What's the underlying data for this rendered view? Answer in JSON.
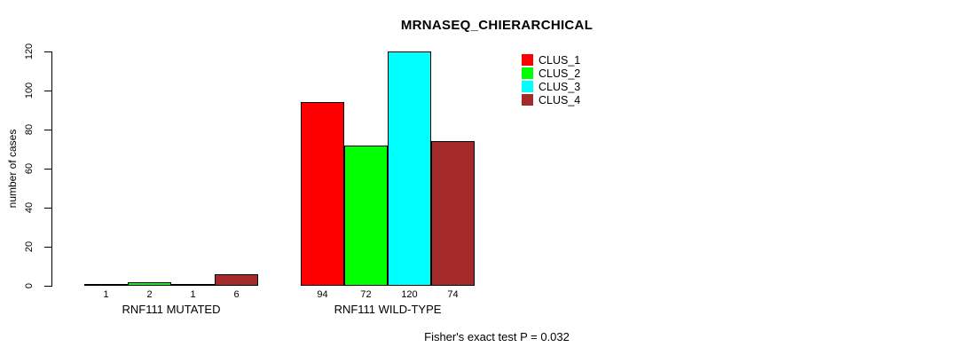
{
  "chart_data": {
    "type": "bar",
    "title": "MRNASEQ_CHIERARCHICAL",
    "ylabel": "number of cases",
    "xlabel": "",
    "ylim": [
      0,
      120
    ],
    "yticks": [
      0,
      20,
      40,
      60,
      80,
      100,
      120
    ],
    "grid": false,
    "legend_position": "top-right-inside",
    "legend_entries": [
      "CLUS_1",
      "CLUS_2",
      "CLUS_3",
      "CLUS_4"
    ],
    "categories": [
      "RNF111 MUTATED",
      "RNF111 WILD-TYPE"
    ],
    "series": [
      {
        "name": "CLUS_1",
        "color": "#FF0000",
        "values": [
          1,
          94
        ]
      },
      {
        "name": "CLUS_2",
        "color": "#00FF00",
        "values": [
          2,
          72
        ]
      },
      {
        "name": "CLUS_3",
        "color": "#00FFFF",
        "values": [
          1,
          120
        ]
      },
      {
        "name": "CLUS_4",
        "color": "#A52A2A",
        "values": [
          6,
          74
        ]
      }
    ],
    "show_bar_values": true,
    "annotation": "Fisher's exact test P = 0.032",
    "axis_color": "#000000",
    "background_color": "#FFFFFF"
  }
}
